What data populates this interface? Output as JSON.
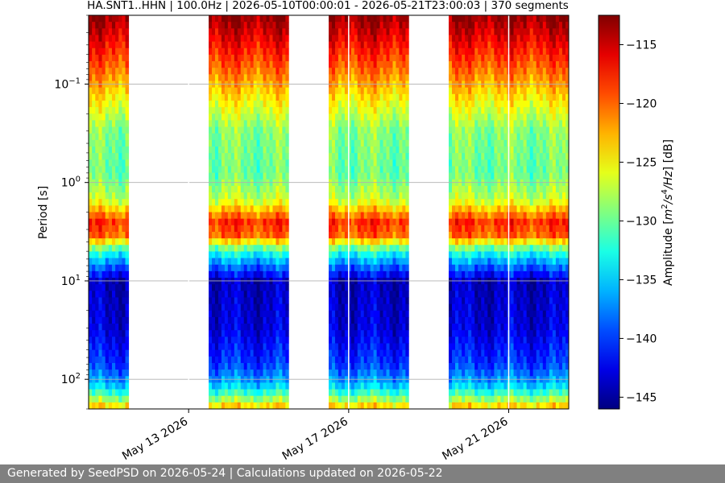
{
  "chart_data": {
    "type": "heatmap",
    "title": "HA.SNT1..HHN | 100.0Hz | 2026-05-10T00:00:01 - 2026-05-21T23:00:03 | 370 segments",
    "ylabel": "Period [s]",
    "colorbar_label": "Amplitude [m²/s⁴/Hz] [dB]",
    "colorbar_label_parts": {
      "prefix": "Amplitude [",
      "m": "m",
      "m_exp": "2",
      "s": "/s",
      "s_exp": "4",
      "hz": "/Hz",
      "suffix": "] [dB]"
    },
    "y_scale": "log",
    "y_inverted": true,
    "x_range": [
      "2026-05-10T12:00",
      "2026-05-22T12:00"
    ],
    "y_range": [
      0.02,
      200
    ],
    "y_ticks": [
      {
        "value": 0.1,
        "base": "10",
        "exp": "−1"
      },
      {
        "value": 1,
        "base": "10",
        "exp": "0"
      },
      {
        "value": 10,
        "base": "10",
        "exp": "1"
      },
      {
        "value": 100,
        "base": "10",
        "exp": "2"
      }
    ],
    "x_ticks": [
      {
        "date": "2026-05-13",
        "label": "May 13 2026"
      },
      {
        "date": "2026-05-17",
        "label": "May 17 2026"
      },
      {
        "date": "2026-05-21",
        "label": "May 21 2026"
      }
    ],
    "data_intervals": [
      [
        "2026-05-10T12:00",
        "2026-05-11T12:00"
      ],
      [
        "2026-05-13T12:00",
        "2026-05-15T12:00"
      ],
      [
        "2026-05-16T12:00",
        "2026-05-18T12:00"
      ],
      [
        "2026-05-19T12:00",
        "2026-05-22T12:00"
      ]
    ],
    "colorbar": {
      "colormap": "jet",
      "range_db": [
        -146,
        -112.5
      ],
      "ticks": [
        -115,
        -120,
        -125,
        -130,
        -135,
        -140,
        -145
      ]
    },
    "grid": true,
    "amplitude_profile": [
      {
        "period": 0.02,
        "db": -113
      },
      {
        "period": 0.035,
        "db": -116
      },
      {
        "period": 0.07,
        "db": -120
      },
      {
        "period": 0.15,
        "db": -125
      },
      {
        "period": 0.3,
        "db": -129
      },
      {
        "period": 0.8,
        "db": -130
      },
      {
        "period": 1.5,
        "db": -127
      },
      {
        "period": 2.5,
        "db": -118
      },
      {
        "period": 3.5,
        "db": -120
      },
      {
        "period": 5,
        "db": -132
      },
      {
        "period": 7,
        "db": -138
      },
      {
        "period": 10,
        "db": -144
      },
      {
        "period": 30,
        "db": -143
      },
      {
        "period": 70,
        "db": -140
      },
      {
        "period": 110,
        "db": -136
      },
      {
        "period": 150,
        "db": -130
      },
      {
        "period": 200,
        "db": -122
      }
    ]
  },
  "footer": {
    "text": "Generated by SeedPSD on 2026-05-24 | Calculations updated on 2026-05-22"
  }
}
